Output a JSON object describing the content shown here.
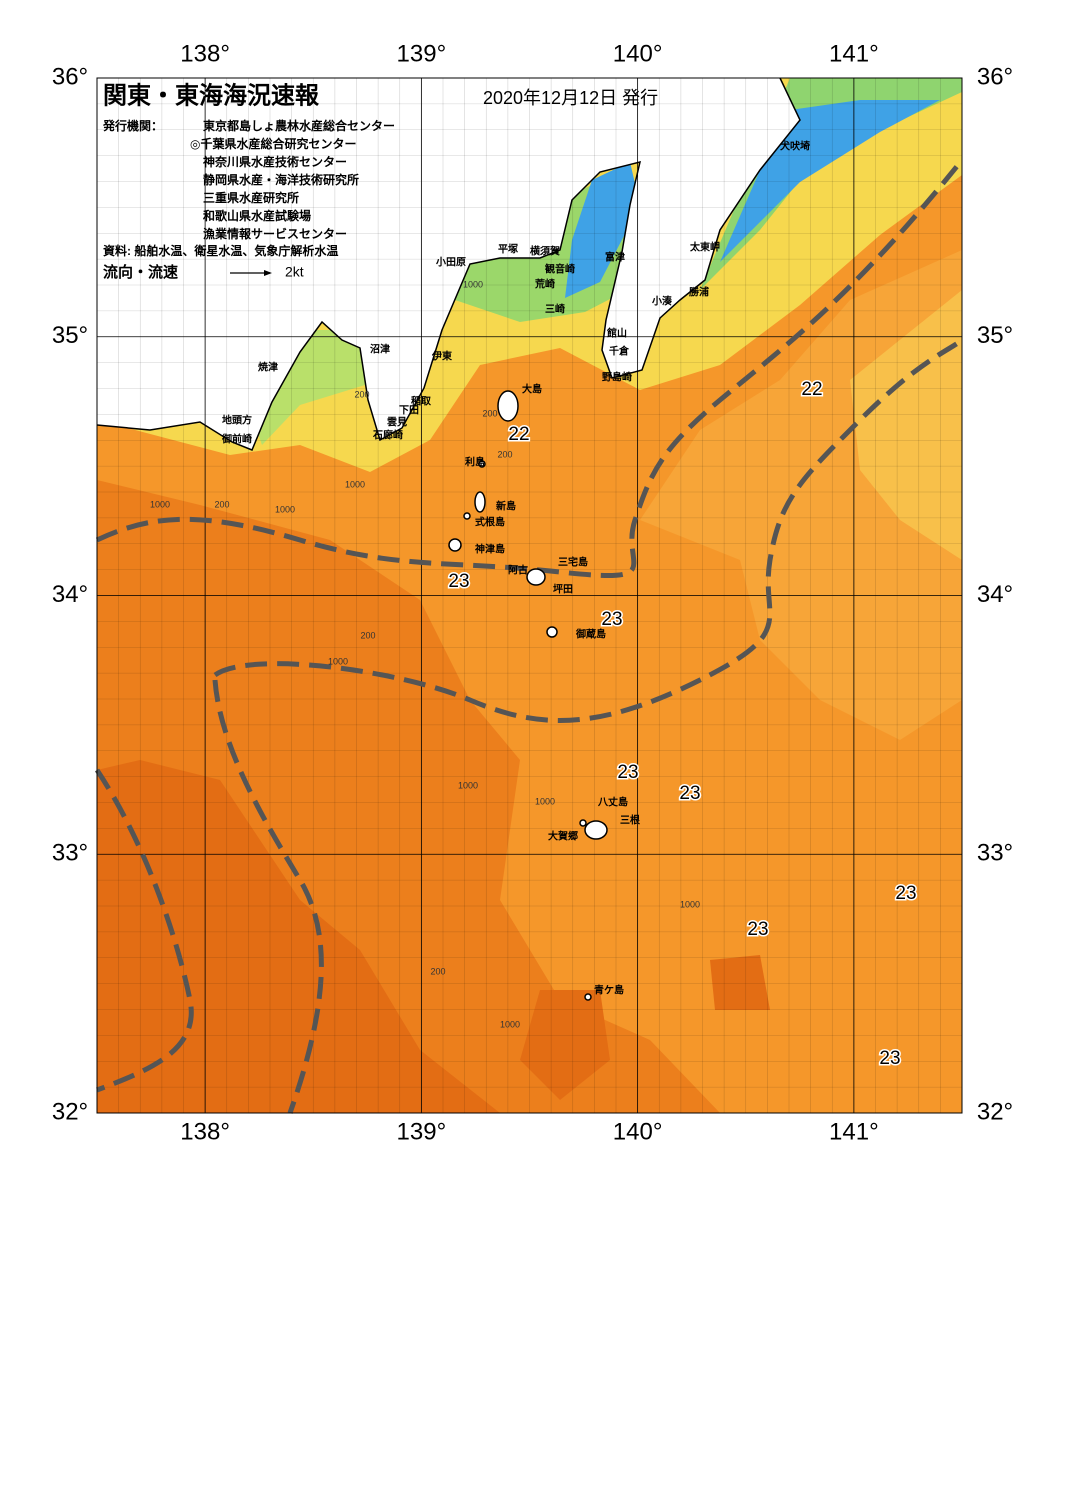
{
  "header": {
    "title": "関東・東海海況速報",
    "date": "2020年12月12日 発行",
    "issuers_label": "発行機関：",
    "issuers": [
      "東京都島しょ農林水産総合センター",
      "◎千葉県水産総合研究センター",
      "神奈川県水産技術センター",
      "静岡県水産・海洋技術研究所",
      "三重県水産研究所",
      "和歌山県水産試験場",
      "漁業情報サービスセンター"
    ],
    "sources": "資料: 船舶水温、衛星水温、気象庁解析水温",
    "flow_label": "流向・流速",
    "flow_scale": "2kt"
  },
  "map": {
    "lon_range": [
      137.5,
      141.5
    ],
    "lat_range": [
      32,
      36
    ],
    "lon_ticks": [
      {
        "value": 138,
        "label": "138°"
      },
      {
        "value": 139,
        "label": "139°"
      },
      {
        "value": 140,
        "label": "140°"
      },
      {
        "value": 141,
        "label": "141°"
      }
    ],
    "lat_ticks": [
      {
        "value": 32,
        "label": "32°"
      },
      {
        "value": 33,
        "label": "33°"
      },
      {
        "value": 34,
        "label": "34°"
      },
      {
        "value": 35,
        "label": "35°"
      },
      {
        "value": 36,
        "label": "36°"
      }
    ],
    "place_names": [
      "犬吠埼",
      "太東岬",
      "勝浦",
      "小湊",
      "館山",
      "千倉",
      "野島崎",
      "富津",
      "横須賀",
      "観音崎",
      "荒崎",
      "三崎",
      "平塚",
      "小田原",
      "沼津",
      "伊東",
      "焼津",
      "稲取",
      "下田",
      "雲見",
      "石廊崎",
      "地頭方",
      "御前崎",
      "大島",
      "利島",
      "新島",
      "式根島",
      "神津島",
      "三宅島",
      "阿古",
      "坪田",
      "御蔵島",
      "八丈島",
      "三根",
      "大賀郷",
      "青ケ島"
    ],
    "temperature_labels": [
      "22",
      "22",
      "23",
      "23",
      "23",
      "23",
      "23",
      "23",
      "23"
    ],
    "depth_labels": [
      "200",
      "1000",
      "200",
      "1000",
      "200",
      "1000",
      "200",
      "1000",
      "1000",
      "200",
      "1000",
      "1000",
      "1000",
      "200",
      "1000"
    ]
  }
}
